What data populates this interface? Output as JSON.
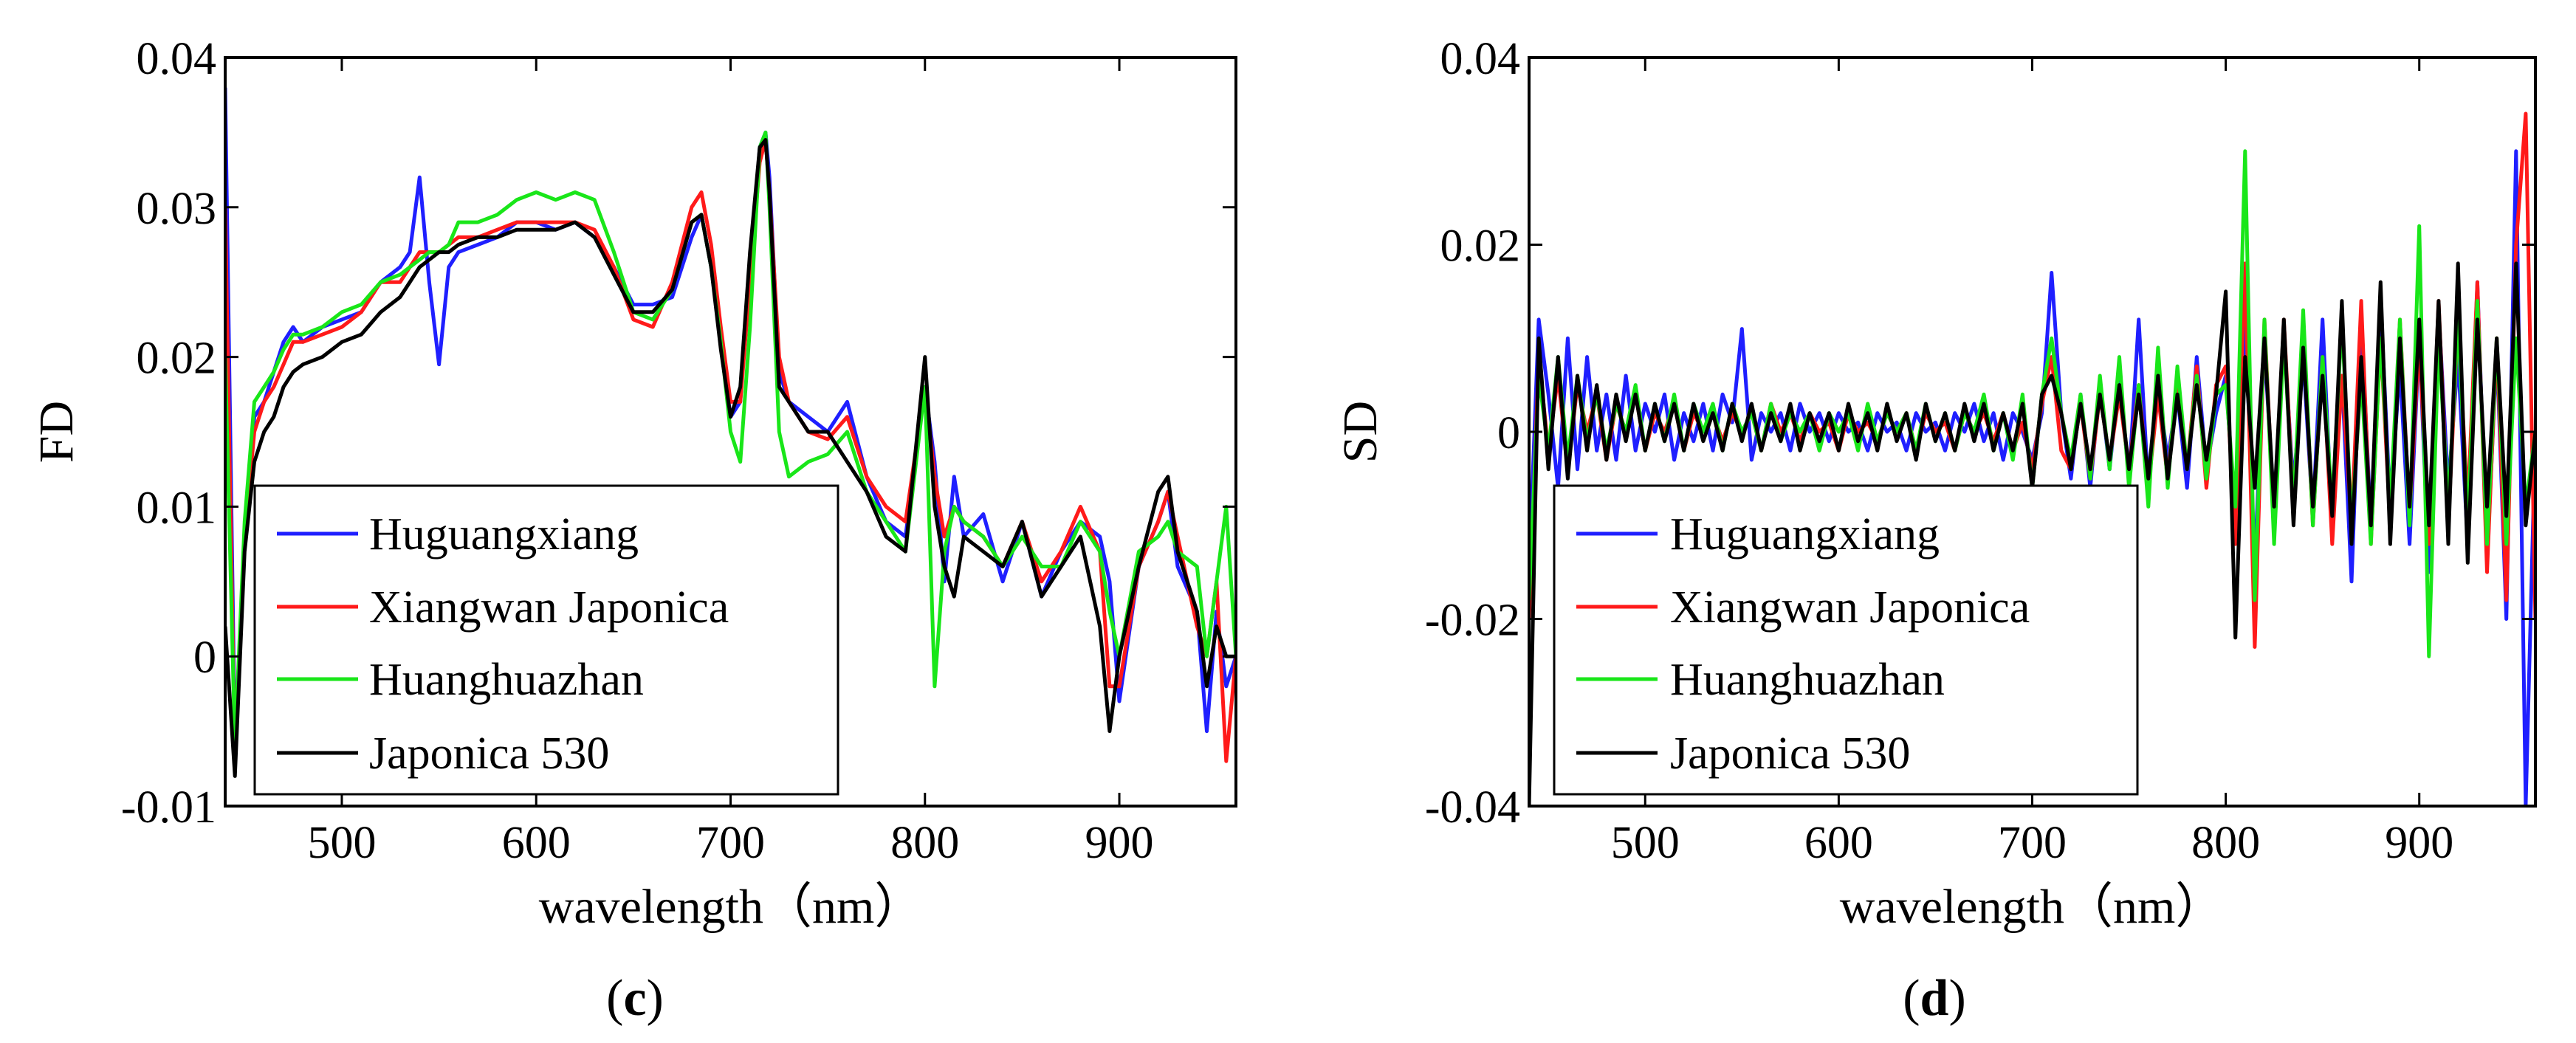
{
  "figure": {
    "panel_c_label": "c",
    "panel_d_label": "d"
  },
  "colors": {
    "Huguangxiang": "#1f1fff",
    "Xiangwan Japonica": "#ff1a1a",
    "Huanghuazhan": "#19e619",
    "Japonica 530": "#000000"
  },
  "chart_data": [
    {
      "type": "line",
      "panel": "c",
      "xlabel": "wavelength（nm）",
      "ylabel": "FD",
      "xlim": [
        440,
        960
      ],
      "ylim": [
        -0.01,
        0.04
      ],
      "xticks": [
        500,
        600,
        700,
        800,
        900
      ],
      "xtick_labels": [
        "500",
        "600",
        "700",
        "800",
        "900"
      ],
      "yticks": [
        -0.01,
        0,
        0.01,
        0.02,
        0.03,
        0.04
      ],
      "ytick_labels": [
        "-0.01",
        "0",
        "0.01",
        "0.02",
        "0.03",
        "0.04"
      ],
      "legend": [
        "Huguangxiang",
        "Xiangwan Japonica",
        "Huanghuazhan",
        "Japonica 530"
      ],
      "legend_position": "bottom-left",
      "x": [
        440,
        445,
        450,
        455,
        460,
        465,
        470,
        475,
        480,
        490,
        500,
        510,
        520,
        530,
        535,
        540,
        545,
        550,
        555,
        560,
        570,
        580,
        590,
        600,
        610,
        620,
        630,
        640,
        650,
        660,
        670,
        680,
        685,
        690,
        695,
        700,
        705,
        710,
        715,
        718,
        720,
        725,
        730,
        740,
        750,
        760,
        770,
        780,
        790,
        800,
        805,
        810,
        815,
        820,
        830,
        840,
        850,
        860,
        870,
        880,
        890,
        895,
        900,
        910,
        920,
        925,
        930,
        940,
        945,
        950,
        955,
        960
      ],
      "series": [
        {
          "name": "Huguangxiang",
          "values": [
            0.038,
            -0.006,
            0.008,
            0.016,
            0.017,
            0.019,
            0.021,
            0.022,
            0.021,
            0.022,
            0.0225,
            0.023,
            0.025,
            0.026,
            0.027,
            0.032,
            0.025,
            0.0195,
            0.026,
            0.027,
            0.0275,
            0.028,
            0.029,
            0.029,
            0.0285,
            0.029,
            0.028,
            0.026,
            0.0235,
            0.0235,
            0.024,
            0.028,
            0.0295,
            0.026,
            0.021,
            0.016,
            0.017,
            0.026,
            0.034,
            0.035,
            0.032,
            0.019,
            0.017,
            0.016,
            0.015,
            0.017,
            0.012,
            0.009,
            0.008,
            0.018,
            0.013,
            0.005,
            0.012,
            0.008,
            0.0095,
            0.005,
            0.009,
            0.004,
            0.007,
            0.009,
            0.008,
            0.005,
            -0.003,
            0.006,
            0.009,
            0.011,
            0.006,
            0.003,
            -0.005,
            0.003,
            -0.002,
            0.0
          ]
        },
        {
          "name": "Xiangwan Japonica",
          "values": [
            0.03,
            -0.007,
            0.008,
            0.015,
            0.017,
            0.018,
            0.0195,
            0.021,
            0.021,
            0.0215,
            0.022,
            0.023,
            0.025,
            0.025,
            0.026,
            0.027,
            0.027,
            0.027,
            0.0275,
            0.028,
            0.028,
            0.0285,
            0.029,
            0.029,
            0.029,
            0.029,
            0.0285,
            0.026,
            0.0225,
            0.022,
            0.025,
            0.03,
            0.031,
            0.0275,
            0.022,
            0.017,
            0.017,
            0.025,
            0.033,
            0.0345,
            0.031,
            0.02,
            0.017,
            0.015,
            0.0145,
            0.016,
            0.012,
            0.01,
            0.009,
            0.018,
            0.012,
            0.008,
            0.01,
            0.009,
            0.008,
            0.006,
            0.009,
            0.005,
            0.007,
            0.01,
            0.007,
            -0.002,
            -0.002,
            0.006,
            0.009,
            0.011,
            0.008,
            0.002,
            0.0,
            0.005,
            -0.007,
            0.0
          ]
        },
        {
          "name": "Huanghuazhan",
          "values": [
            0.02,
            -0.006,
            0.009,
            0.017,
            0.018,
            0.019,
            0.0205,
            0.0215,
            0.0215,
            0.022,
            0.023,
            0.0235,
            0.025,
            0.0255,
            0.026,
            0.0265,
            0.027,
            0.027,
            0.0275,
            0.029,
            0.029,
            0.0295,
            0.0305,
            0.031,
            0.0305,
            0.031,
            0.0305,
            0.027,
            0.023,
            0.0225,
            0.0245,
            0.029,
            0.0295,
            0.026,
            0.021,
            0.015,
            0.013,
            0.022,
            0.034,
            0.035,
            0.03,
            0.015,
            0.012,
            0.013,
            0.0135,
            0.015,
            0.011,
            0.009,
            0.007,
            0.018,
            -0.002,
            0.007,
            0.01,
            0.009,
            0.008,
            0.006,
            0.008,
            0.006,
            0.006,
            0.009,
            0.007,
            0.003,
            0.0,
            0.007,
            0.008,
            0.009,
            0.007,
            0.006,
            0.0,
            0.005,
            0.01,
            0.0
          ]
        },
        {
          "name": "Japonica 530",
          "values": [
            0.002,
            -0.008,
            0.007,
            0.013,
            0.015,
            0.016,
            0.018,
            0.019,
            0.0195,
            0.02,
            0.021,
            0.0215,
            0.023,
            0.024,
            0.025,
            0.026,
            0.0265,
            0.027,
            0.027,
            0.0275,
            0.028,
            0.028,
            0.0285,
            0.0285,
            0.0285,
            0.029,
            0.028,
            0.0255,
            0.023,
            0.023,
            0.0245,
            0.029,
            0.0295,
            0.026,
            0.0205,
            0.016,
            0.018,
            0.027,
            0.034,
            0.0345,
            0.031,
            0.018,
            0.017,
            0.015,
            0.015,
            0.013,
            0.011,
            0.008,
            0.007,
            0.02,
            0.01,
            0.006,
            0.004,
            0.008,
            0.007,
            0.006,
            0.009,
            0.004,
            0.006,
            0.008,
            0.002,
            -0.005,
            0.0,
            0.006,
            0.011,
            0.012,
            0.007,
            0.003,
            -0.002,
            0.002,
            0.0,
            0.0
          ]
        }
      ]
    },
    {
      "type": "line",
      "panel": "d",
      "xlabel": "wavelength（nm）",
      "ylabel": "SD",
      "xlim": [
        440,
        960
      ],
      "ylim": [
        -0.04,
        0.04
      ],
      "xticks": [
        500,
        600,
        700,
        800,
        900
      ],
      "xtick_labels": [
        "500",
        "600",
        "700",
        "800",
        "900"
      ],
      "yticks": [
        -0.04,
        -0.02,
        0,
        0.02,
        0.04
      ],
      "ytick_labels": [
        "-0.04",
        "-0.02",
        "0",
        "0.02",
        "0.04"
      ],
      "legend": [
        "Huguangxiang",
        "Xiangwan Japonica",
        "Huanghuazhan",
        "Japonica 530"
      ],
      "legend_position": "bottom-left",
      "x": [
        440,
        445,
        450,
        455,
        460,
        465,
        470,
        475,
        480,
        485,
        490,
        495,
        500,
        505,
        510,
        515,
        520,
        525,
        530,
        535,
        540,
        545,
        550,
        555,
        560,
        565,
        570,
        575,
        580,
        585,
        590,
        595,
        600,
        605,
        610,
        615,
        620,
        625,
        630,
        635,
        640,
        645,
        650,
        655,
        660,
        665,
        670,
        675,
        680,
        685,
        690,
        695,
        700,
        705,
        710,
        715,
        720,
        725,
        730,
        735,
        740,
        745,
        750,
        755,
        760,
        765,
        770,
        775,
        780,
        785,
        790,
        795,
        800,
        805,
        810,
        815,
        820,
        825,
        830,
        835,
        840,
        845,
        850,
        855,
        860,
        865,
        870,
        875,
        880,
        885,
        890,
        895,
        900,
        905,
        910,
        915,
        920,
        925,
        930,
        935,
        940,
        945,
        950,
        955,
        960
      ],
      "series": [
        {
          "name": "Huguangxiang",
          "values": [
            -0.015,
            0.012,
            0.004,
            -0.006,
            0.01,
            -0.004,
            0.008,
            -0.002,
            0.004,
            -0.003,
            0.006,
            -0.002,
            0.003,
            0.0,
            0.004,
            -0.003,
            0.002,
            -0.001,
            0.003,
            -0.002,
            0.004,
            0.001,
            0.011,
            -0.003,
            0.002,
            0.0,
            0.002,
            -0.002,
            0.003,
            0.0,
            0.002,
            -0.001,
            0.002,
            0.0,
            0.001,
            -0.002,
            0.002,
            0.0,
            0.001,
            -0.002,
            0.002,
            0.0,
            0.001,
            -0.002,
            0.002,
            0.0,
            0.003,
            -0.001,
            0.002,
            -0.003,
            0.002,
            0.0,
            -0.003,
            0.002,
            0.017,
            0.002,
            -0.005,
            0.004,
            -0.006,
            0.005,
            -0.004,
            0.006,
            -0.005,
            0.012,
            -0.006,
            0.005,
            -0.003,
            0.004,
            -0.006,
            0.008,
            -0.004,
            0.002,
            0.006,
            -0.01,
            0.012,
            -0.014,
            0.009,
            -0.008,
            0.01,
            -0.006,
            0.008,
            -0.009,
            0.012,
            -0.01,
            0.006,
            -0.016,
            0.012,
            -0.01,
            0.014,
            -0.008,
            0.007,
            -0.012,
            0.01,
            -0.015,
            0.013,
            -0.006,
            0.008,
            -0.012,
            0.016,
            -0.014,
            0.009,
            -0.02,
            0.03,
            -0.04,
            0.0
          ]
        },
        {
          "name": "Xiangwan Japonica",
          "values": [
            -0.02,
            0.008,
            -0.002,
            0.006,
            -0.004,
            0.005,
            0.0,
            0.004,
            -0.003,
            0.003,
            0.0,
            0.004,
            -0.002,
            0.002,
            0.0,
            0.003,
            -0.002,
            0.002,
            0.0,
            0.002,
            -0.001,
            0.002,
            0.0,
            0.002,
            -0.002,
            0.003,
            0.0,
            0.002,
            -0.001,
            0.002,
            0.0,
            0.001,
            -0.002,
            0.002,
            0.0,
            0.001,
            -0.001,
            0.002,
            0.0,
            0.002,
            -0.002,
            0.002,
            0.0,
            0.001,
            -0.002,
            0.002,
            0.0,
            0.002,
            -0.001,
            0.002,
            -0.002,
            0.001,
            -0.004,
            0.003,
            0.008,
            -0.002,
            -0.004,
            0.003,
            -0.005,
            0.004,
            -0.003,
            0.004,
            -0.004,
            0.005,
            -0.006,
            0.004,
            -0.005,
            0.006,
            -0.004,
            0.007,
            -0.006,
            0.005,
            0.007,
            -0.012,
            0.018,
            -0.023,
            0.012,
            -0.01,
            0.012,
            -0.008,
            0.012,
            -0.01,
            0.008,
            -0.012,
            0.006,
            -0.01,
            0.014,
            -0.012,
            0.01,
            -0.01,
            0.012,
            -0.009,
            0.01,
            -0.012,
            0.014,
            -0.01,
            0.012,
            -0.008,
            0.016,
            -0.015,
            0.01,
            -0.018,
            0.02,
            0.034,
            -0.02
          ]
        },
        {
          "name": "Huanghuazhan",
          "values": [
            -0.018,
            0.006,
            -0.002,
            0.008,
            -0.003,
            0.006,
            -0.001,
            0.004,
            -0.002,
            0.003,
            0.0,
            0.005,
            -0.002,
            0.003,
            -0.001,
            0.004,
            -0.002,
            0.003,
            0.0,
            0.003,
            -0.002,
            0.003,
            0.0,
            0.002,
            -0.002,
            0.003,
            -0.001,
            0.002,
            0.0,
            0.002,
            -0.002,
            0.002,
            0.0,
            0.002,
            -0.002,
            0.003,
            -0.001,
            0.002,
            0.0,
            0.002,
            -0.002,
            0.003,
            -0.001,
            0.002,
            -0.002,
            0.002,
            0.0,
            0.004,
            -0.002,
            0.002,
            -0.003,
            0.004,
            -0.006,
            0.004,
            0.01,
            0.002,
            -0.003,
            0.004,
            -0.005,
            0.006,
            -0.004,
            0.008,
            -0.006,
            0.005,
            -0.008,
            0.009,
            -0.006,
            0.007,
            -0.004,
            0.006,
            -0.005,
            0.004,
            0.005,
            -0.008,
            0.03,
            -0.018,
            0.012,
            -0.012,
            0.01,
            -0.008,
            0.013,
            -0.01,
            0.008,
            -0.008,
            0.012,
            -0.01,
            0.006,
            -0.012,
            0.01,
            -0.008,
            0.012,
            -0.01,
            0.022,
            -0.024,
            0.01,
            -0.008,
            0.012,
            -0.01,
            0.014,
            -0.012,
            0.01,
            -0.012,
            0.01,
            -0.008,
            0.0
          ]
        },
        {
          "name": "Japonica 530",
          "values": [
            -0.04,
            0.01,
            -0.004,
            0.008,
            -0.005,
            0.006,
            -0.002,
            0.005,
            -0.003,
            0.004,
            -0.001,
            0.004,
            -0.002,
            0.003,
            -0.001,
            0.003,
            -0.002,
            0.003,
            -0.001,
            0.002,
            -0.002,
            0.003,
            -0.001,
            0.003,
            -0.002,
            0.002,
            -0.001,
            0.003,
            -0.002,
            0.002,
            -0.001,
            0.002,
            -0.002,
            0.003,
            -0.001,
            0.002,
            -0.002,
            0.003,
            -0.001,
            0.002,
            -0.003,
            0.003,
            -0.001,
            0.002,
            -0.002,
            0.003,
            -0.001,
            0.003,
            -0.002,
            0.002,
            -0.002,
            0.003,
            -0.006,
            0.004,
            0.006,
            0.002,
            -0.004,
            0.003,
            -0.004,
            0.004,
            -0.003,
            0.005,
            -0.004,
            0.004,
            -0.005,
            0.006,
            -0.005,
            0.004,
            -0.004,
            0.005,
            -0.003,
            0.004,
            0.015,
            -0.022,
            0.008,
            -0.006,
            0.01,
            -0.008,
            0.012,
            -0.01,
            0.009,
            -0.008,
            0.006,
            -0.009,
            0.014,
            -0.012,
            0.008,
            -0.01,
            0.016,
            -0.012,
            0.01,
            -0.008,
            0.012,
            -0.01,
            0.014,
            -0.012,
            0.018,
            -0.014,
            0.012,
            -0.008,
            0.01,
            -0.009,
            0.018,
            -0.01,
            0.0
          ]
        }
      ]
    }
  ]
}
